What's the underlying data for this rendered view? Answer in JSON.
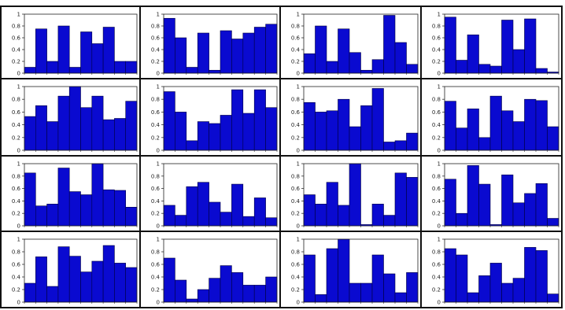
{
  "chart_data": [
    {
      "type": "bar",
      "ylim": [
        0,
        1
      ],
      "yticks": [
        "0",
        "0.2",
        "0.4",
        "0.6",
        "0.8",
        "1"
      ],
      "bar_color": "#0a0ad0",
      "values": [
        0.1,
        0.75,
        0.2,
        0.8,
        0.1,
        0.7,
        0.5,
        0.78,
        0.2,
        0.2
      ]
    },
    {
      "type": "bar",
      "ylim": [
        0,
        1
      ],
      "yticks": [
        "0",
        "0.2",
        "0.4",
        "0.6",
        "0.8",
        "1"
      ],
      "bar_color": "#0a0ad0",
      "values": [
        0.93,
        0.6,
        0.1,
        0.68,
        0.05,
        0.72,
        0.58,
        0.68,
        0.78,
        0.83
      ]
    },
    {
      "type": "bar",
      "ylim": [
        0,
        1
      ],
      "yticks": [
        "0",
        "0.2",
        "0.4",
        "0.6",
        "0.8",
        "1"
      ],
      "bar_color": "#0a0ad0",
      "values": [
        0.33,
        0.8,
        0.2,
        0.75,
        0.35,
        0.05,
        0.23,
        0.98,
        0.52,
        0.15
      ]
    },
    {
      "type": "bar",
      "ylim": [
        0,
        1
      ],
      "yticks": [
        "0",
        "0.2",
        "0.4",
        "0.6",
        "0.8",
        "1"
      ],
      "bar_color": "#0a0ad0",
      "values": [
        0.95,
        0.22,
        0.65,
        0.15,
        0.12,
        0.9,
        0.4,
        0.92,
        0.08,
        0.02
      ]
    },
    {
      "type": "bar",
      "ylim": [
        0,
        1
      ],
      "yticks": [
        "0",
        "0.2",
        "0.4",
        "0.6",
        "0.8",
        "1"
      ],
      "bar_color": "#0a0ad0",
      "values": [
        0.53,
        0.7,
        0.45,
        0.85,
        1.0,
        0.67,
        0.85,
        0.48,
        0.5,
        0.77
      ]
    },
    {
      "type": "bar",
      "ylim": [
        0,
        1
      ],
      "yticks": [
        "0",
        "0.2",
        "0.4",
        "0.6",
        "0.8",
        "1"
      ],
      "bar_color": "#0a0ad0",
      "values": [
        0.92,
        0.6,
        0.15,
        0.45,
        0.42,
        0.55,
        0.95,
        0.58,
        0.95,
        0.67
      ]
    },
    {
      "type": "bar",
      "ylim": [
        0,
        1
      ],
      "yticks": [
        "0",
        "0.2",
        "0.4",
        "0.6",
        "0.8",
        "1"
      ],
      "bar_color": "#0a0ad0",
      "values": [
        0.75,
        0.6,
        0.62,
        0.8,
        0.37,
        0.7,
        0.97,
        0.13,
        0.15,
        0.27
      ]
    },
    {
      "type": "bar",
      "ylim": [
        0,
        1
      ],
      "yticks": [
        "0",
        "0.2",
        "0.4",
        "0.6",
        "0.8",
        "1"
      ],
      "bar_color": "#0a0ad0",
      "values": [
        0.77,
        0.35,
        0.65,
        0.2,
        0.85,
        0.62,
        0.45,
        0.8,
        0.78,
        0.37
      ]
    },
    {
      "type": "bar",
      "ylim": [
        0,
        1
      ],
      "yticks": [
        "0",
        "0.2",
        "0.4",
        "0.6",
        "0.8",
        "1"
      ],
      "bar_color": "#0a0ad0",
      "values": [
        0.85,
        0.32,
        0.35,
        0.93,
        0.55,
        0.5,
        1.0,
        0.58,
        0.57,
        0.3
      ]
    },
    {
      "type": "bar",
      "ylim": [
        0,
        1
      ],
      "yticks": [
        "0",
        "0.2",
        "0.4",
        "0.6",
        "0.8",
        "1"
      ],
      "bar_color": "#0a0ad0",
      "values": [
        0.33,
        0.17,
        0.63,
        0.7,
        0.38,
        0.22,
        0.67,
        0.15,
        0.45,
        0.13
      ]
    },
    {
      "type": "bar",
      "ylim": [
        0,
        1
      ],
      "yticks": [
        "0",
        "0.2",
        "0.4",
        "0.6",
        "0.8",
        "1"
      ],
      "bar_color": "#0a0ad0",
      "values": [
        0.5,
        0.35,
        0.7,
        0.33,
        1.0,
        0.02,
        0.35,
        0.17,
        0.85,
        0.78
      ]
    },
    {
      "type": "bar",
      "ylim": [
        0,
        1
      ],
      "yticks": [
        "0",
        "0.2",
        "0.4",
        "0.6",
        "0.8",
        "1"
      ],
      "bar_color": "#0a0ad0",
      "values": [
        0.75,
        0.2,
        0.97,
        0.67,
        0.02,
        0.82,
        0.37,
        0.52,
        0.68,
        0.12
      ]
    },
    {
      "type": "bar",
      "ylim": [
        0,
        1
      ],
      "yticks": [
        "0",
        "0.2",
        "0.4",
        "0.6",
        "0.8",
        "1"
      ],
      "bar_color": "#0a0ad0",
      "values": [
        0.3,
        0.72,
        0.25,
        0.88,
        0.73,
        0.48,
        0.65,
        0.9,
        0.62,
        0.55
      ]
    },
    {
      "type": "bar",
      "ylim": [
        0,
        1
      ],
      "yticks": [
        "0",
        "0.2",
        "0.4",
        "0.6",
        "0.8",
        "1"
      ],
      "bar_color": "#0a0ad0",
      "values": [
        0.7,
        0.35,
        0.05,
        0.2,
        0.38,
        0.58,
        0.47,
        0.27,
        0.27,
        0.4
      ]
    },
    {
      "type": "bar",
      "ylim": [
        0,
        1
      ],
      "yticks": [
        "0",
        "0.2",
        "0.4",
        "0.6",
        "0.8",
        "1"
      ],
      "bar_color": "#0a0ad0",
      "values": [
        0.75,
        0.12,
        0.85,
        1.0,
        0.3,
        0.3,
        0.75,
        0.45,
        0.15,
        0.47
      ]
    },
    {
      "type": "bar",
      "ylim": [
        0,
        1
      ],
      "yticks": [
        "0",
        "0.2",
        "0.4",
        "0.6",
        "0.8",
        "1"
      ],
      "bar_color": "#0a0ad0",
      "values": [
        0.85,
        0.75,
        0.15,
        0.42,
        0.62,
        0.3,
        0.38,
        0.87,
        0.82,
        0.13
      ]
    }
  ]
}
